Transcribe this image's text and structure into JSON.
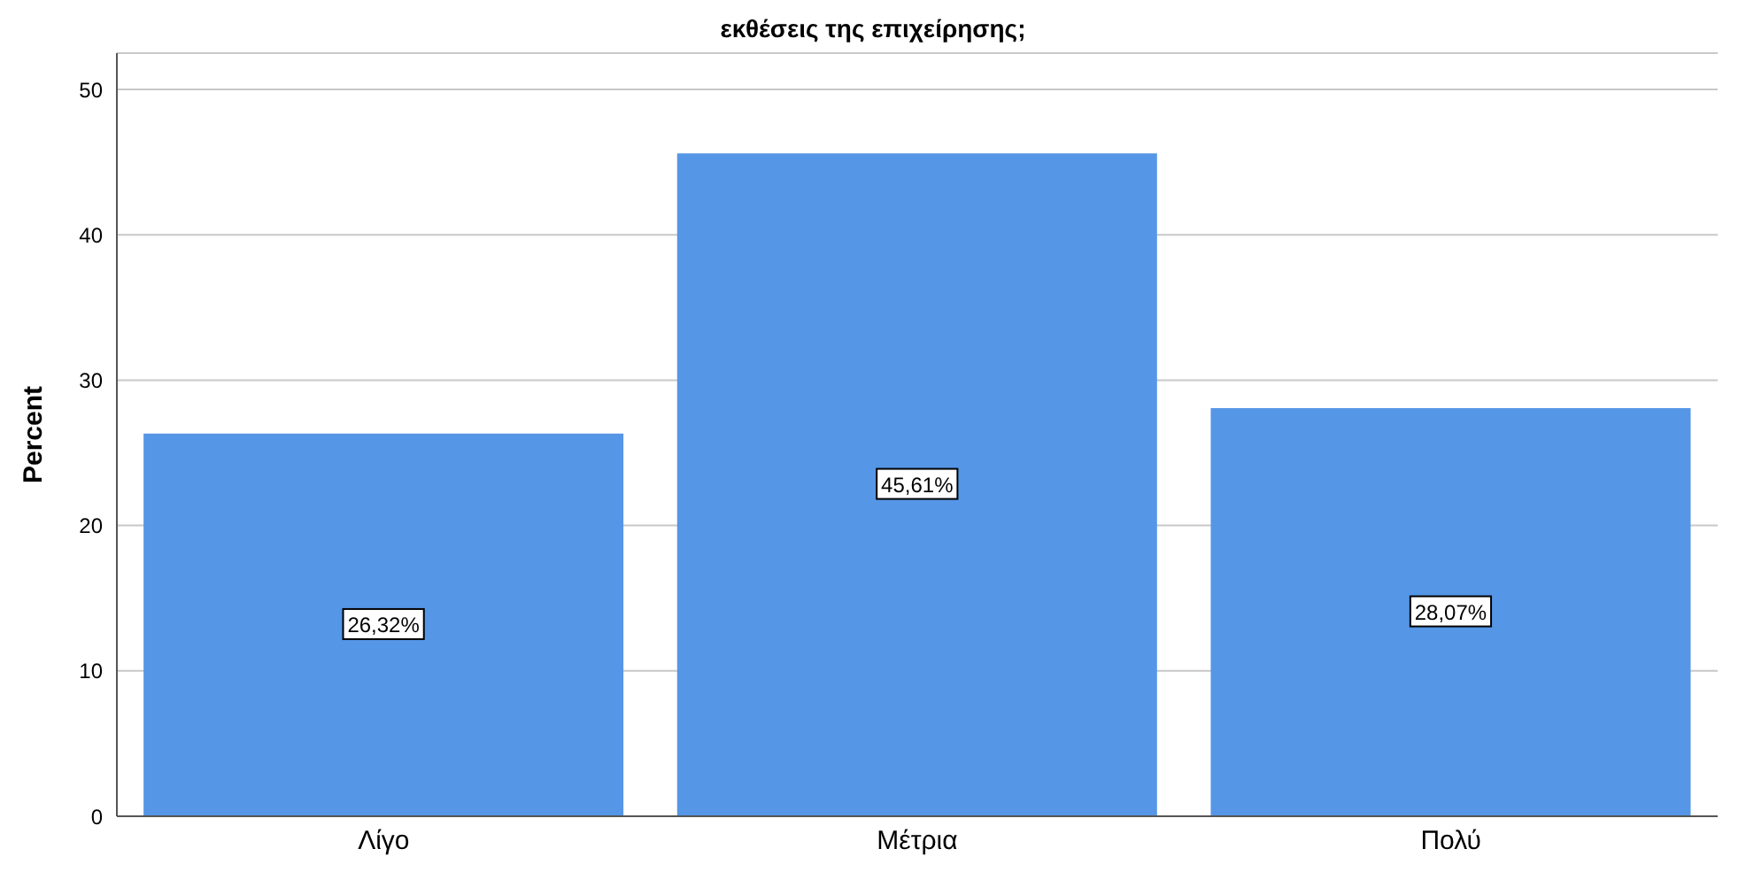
{
  "chart_data": {
    "type": "bar",
    "title": "εκθέσεις της επιχείρησης;",
    "ylabel": "Percent",
    "categories": [
      "Λίγο",
      "Μέτρια",
      "Πολύ"
    ],
    "values": [
      26.32,
      45.61,
      28.07
    ],
    "value_labels": [
      "26,32%",
      "45,61%",
      "28,07%"
    ],
    "color": "#5596e6",
    "ylim": [
      0,
      52.5
    ],
    "yticks": [
      0,
      10,
      20,
      30,
      40,
      50
    ],
    "grid": "y"
  }
}
